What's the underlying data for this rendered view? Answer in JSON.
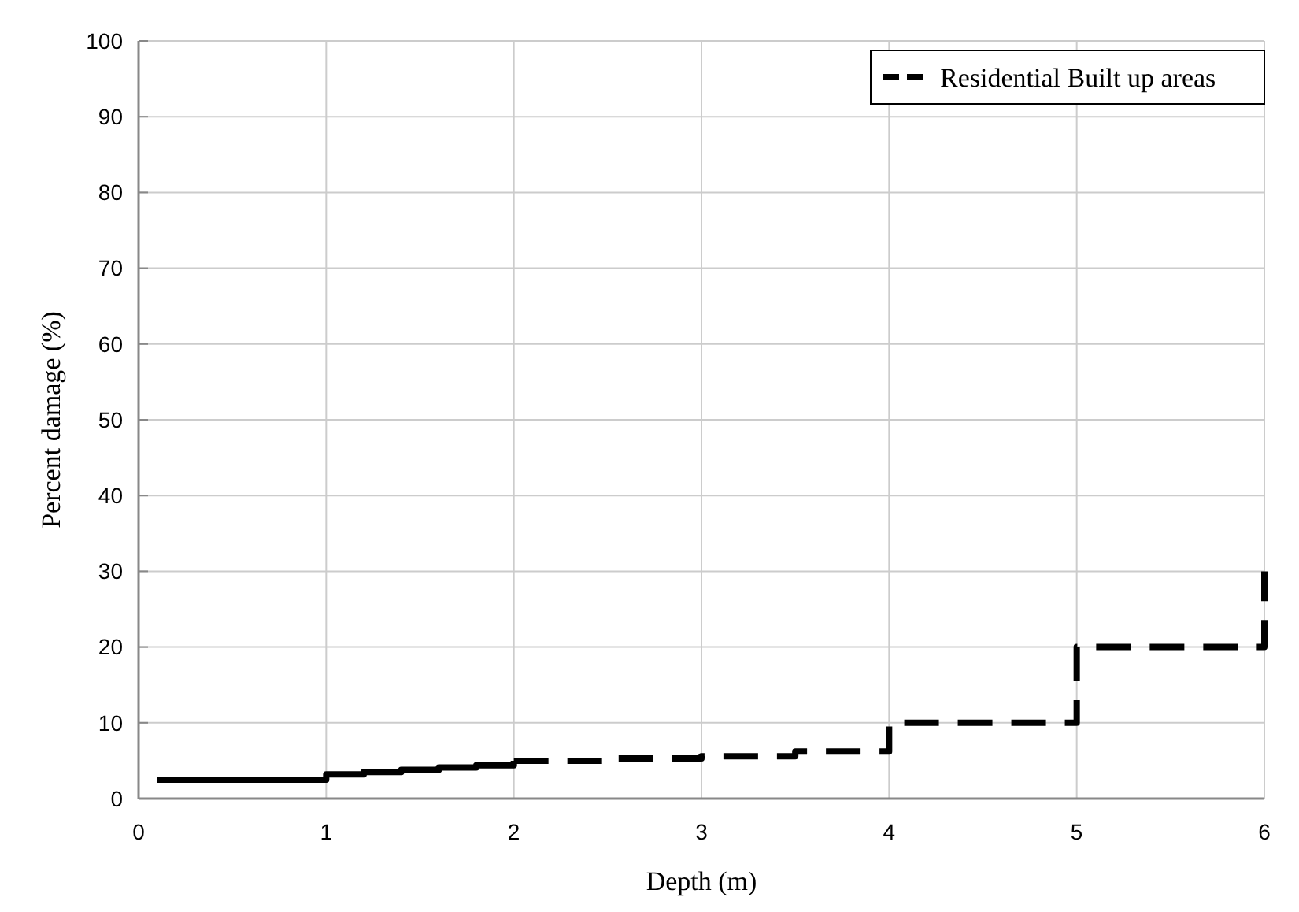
{
  "chart_data": {
    "type": "step",
    "xlabel": "Depth (m)",
    "ylabel": "Percent damage (%)",
    "xlim": [
      0,
      6
    ],
    "xticks": [
      0,
      1,
      2,
      3,
      4,
      5,
      6
    ],
    "ylim": [
      0,
      100
    ],
    "yticks": [
      0,
      10,
      20,
      30,
      40,
      50,
      60,
      70,
      80,
      90,
      100
    ],
    "grid": true,
    "legend": "top right",
    "series": [
      {
        "color": "#000000",
        "line_style": "solid",
        "x": [
          0.1,
          1,
          1.2,
          1.4,
          1.6,
          1.8,
          2
        ],
        "values": [
          2.5,
          3.2,
          3.5,
          3.8,
          4.1,
          4.4,
          5
        ]
      },
      {
        "name": "Residential Built up areas",
        "color": "#000000",
        "line_style": "dashed",
        "x": [
          2,
          2.5,
          3,
          3.5,
          4,
          5,
          6
        ],
        "values": [
          5,
          5.3,
          5.6,
          6.2,
          10,
          20,
          30
        ]
      }
    ]
  }
}
